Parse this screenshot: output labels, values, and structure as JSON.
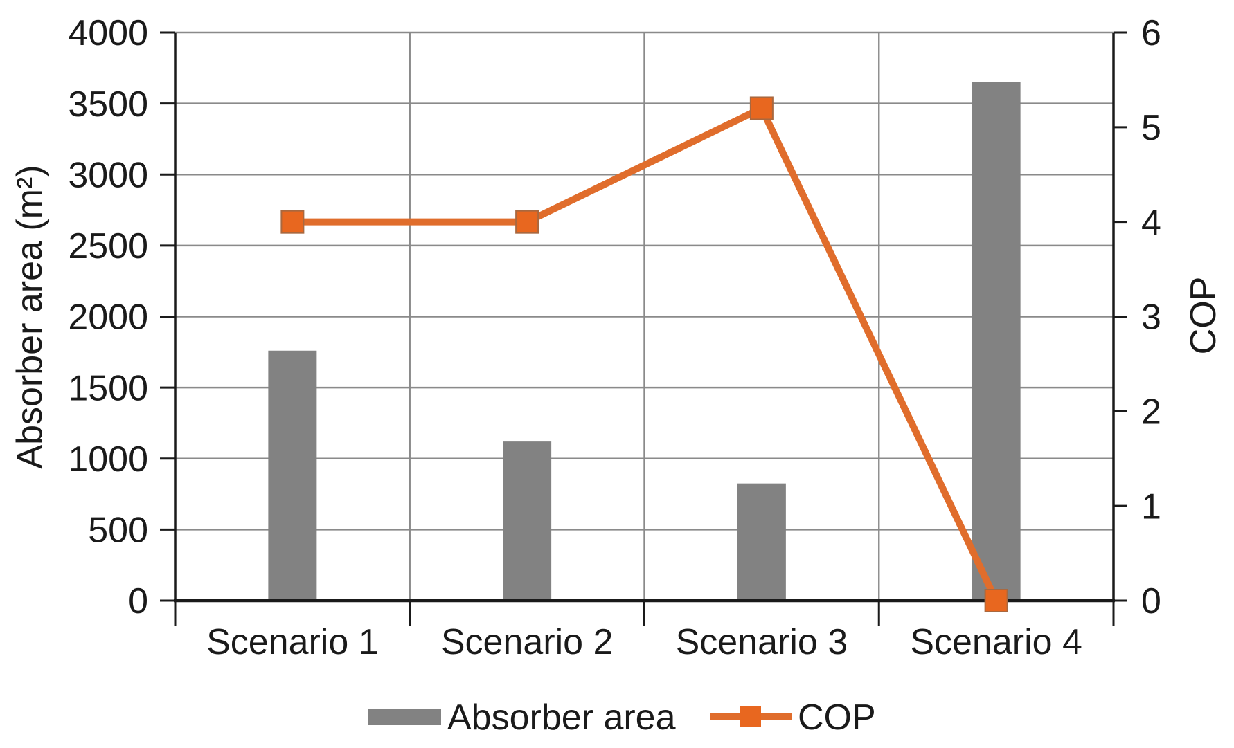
{
  "chart_data": {
    "type": "bar",
    "subtype": "combo-bar-line",
    "title": "",
    "categories": [
      "Scenario 1",
      "Scenario 2",
      "Scenario 3",
      "Scenario 4"
    ],
    "series": [
      {
        "name": "Absorber area",
        "type": "bar",
        "axis": "left",
        "color": "#828282",
        "values": [
          1760,
          1120,
          825,
          3650
        ]
      },
      {
        "name": "COP",
        "type": "line",
        "axis": "right",
        "color": "#E06D2C",
        "marker": "square",
        "marker_color": "#E8671F",
        "values": [
          4.0,
          4.0,
          5.2,
          0.0
        ]
      }
    ],
    "left_axis": {
      "label": "Absorber area (m²)",
      "min": 0,
      "max": 4000,
      "step": 500,
      "tick_labels": [
        "0",
        "500",
        "1000",
        "1500",
        "2000",
        "2500",
        "3000",
        "3500",
        "4000"
      ]
    },
    "right_axis": {
      "label": "COP",
      "min": 0,
      "max": 6,
      "step": 1,
      "tick_labels": [
        "0",
        "1",
        "2",
        "3",
        "4",
        "5",
        "6"
      ]
    },
    "grid": "on",
    "grid_color": "#8a8a8a",
    "axis_line_color": "#1a1a1a",
    "background_color": "#ffffff",
    "legend_position": "bottom",
    "legend": [
      "Absorber area",
      "COP"
    ]
  }
}
